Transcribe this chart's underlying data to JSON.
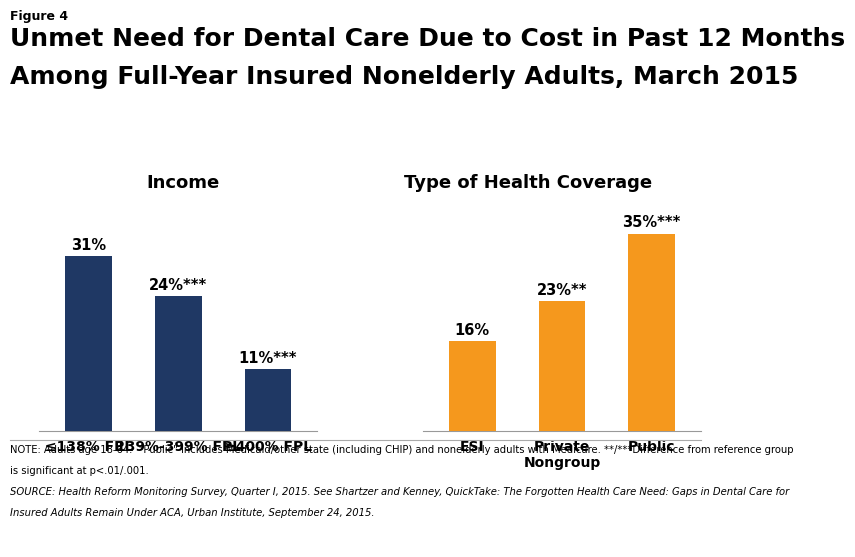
{
  "figure_label": "Figure 4",
  "title_line1": "Unmet Need for Dental Care Due to Cost in Past 12 Months",
  "title_line2": "Among Full-Year Insured Nonelderly Adults, March 2015",
  "group1_title": "Income",
  "group2_title": "Type of Health Coverage",
  "group1_categories": [
    "≤138% FPL",
    "139%-399% FPL",
    "≥400% FPL"
  ],
  "group1_values": [
    31,
    24,
    11
  ],
  "group1_labels": [
    "31%",
    "24%***",
    "11%***"
  ],
  "group1_color": "#1f3864",
  "group2_categories": [
    "ESI",
    "Private\nNongroup",
    "Public"
  ],
  "group2_values": [
    16,
    23,
    35
  ],
  "group2_labels": [
    "16%",
    "23%**",
    "35%***"
  ],
  "group2_color": "#f5981d",
  "ylim": [
    0,
    40
  ],
  "note_line1": "NOTE: Adults age 18-64.  \"Public\" includes Medicaid/other state (including CHIP) and nonelderly adults with Medicare. **/***Difference from reference group",
  "note_line2": "is significant at p<.01/.001.",
  "note_line3": "SOURCE: Health Reform Monitoring Survey, Quarter I, 2015. See Shartzer and Kenney, QuickTake: The Forgotten Health Care Need: Gaps in Dental Care for",
  "note_line4": "Insured Adults Remain Under ACA, Urban Institute, September 24, 2015.",
  "background_color": "#ffffff",
  "label_fontsize": 10.5,
  "title_fontsize": 18,
  "figure_label_fontsize": 9,
  "group_title_fontsize": 13,
  "tick_fontsize": 10,
  "note_fontsize": 7.2,
  "bar_width": 0.52
}
